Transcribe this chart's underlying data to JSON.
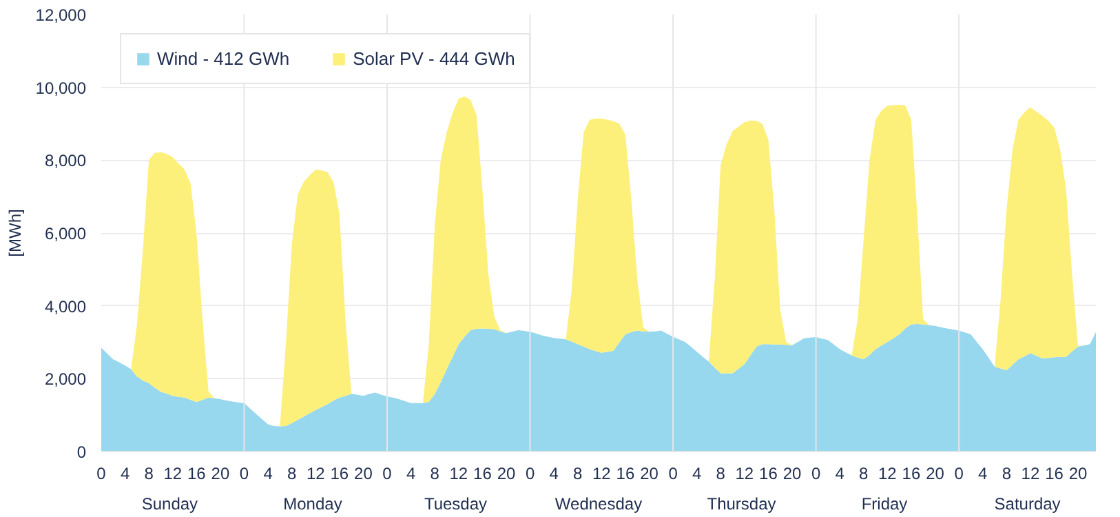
{
  "chart_data": {
    "type": "area",
    "stacked": true,
    "ylabel": "[MWh]",
    "categories": [
      "0",
      null,
      null,
      null,
      "4",
      null,
      null,
      null,
      "8",
      null,
      null,
      null,
      "12",
      null,
      null,
      null,
      "16",
      null,
      null,
      null,
      "20",
      null,
      null,
      null,
      "0",
      null,
      null,
      null,
      "4",
      null,
      null,
      null,
      "8",
      null,
      null,
      null,
      "12",
      null,
      null,
      null,
      "16",
      null,
      null,
      null,
      "20",
      null,
      null,
      null,
      "0",
      null,
      null,
      null,
      "4",
      null,
      null,
      null,
      "8",
      null,
      null,
      null,
      "12",
      null,
      null,
      null,
      "16",
      null,
      null,
      null,
      "20",
      null,
      null,
      null,
      "0",
      null,
      null,
      null,
      "4",
      null,
      null,
      null,
      "8",
      null,
      null,
      null,
      "12",
      null,
      null,
      null,
      "16",
      null,
      null,
      null,
      "20",
      null,
      null,
      null,
      "0",
      null,
      null,
      null,
      "4",
      null,
      null,
      null,
      "8",
      null,
      null,
      null,
      "12",
      null,
      null,
      null,
      "16",
      null,
      null,
      null,
      "20",
      null,
      null,
      null,
      "0",
      null,
      null,
      null,
      "4",
      null,
      null,
      null,
      "8",
      null,
      null,
      null,
      "12",
      null,
      null,
      null,
      "16",
      null,
      null,
      null,
      "20",
      null,
      null,
      null,
      "0",
      null,
      null,
      null,
      "4",
      null,
      null,
      null,
      "8",
      null,
      null,
      null,
      "12",
      null,
      null,
      null,
      "16",
      null,
      null,
      null,
      "20",
      null,
      null,
      null
    ],
    "series": [
      {
        "name": "Wind - 412 GWh",
        "color": "#98d8ee",
        "values": [
          2850,
          2690,
          2530,
          2450,
          2360,
          2260,
          2060,
          1950,
          1880,
          1750,
          1640,
          1590,
          1530,
          1500,
          1480,
          1420,
          1360,
          1420,
          1480,
          1460,
          1440,
          1400,
          1370,
          1350,
          1330,
          1180,
          1030,
          890,
          750,
          700,
          690,
          700,
          780,
          870,
          960,
          1050,
          1140,
          1220,
          1300,
          1400,
          1480,
          1530,
          1580,
          1560,
          1530,
          1580,
          1620,
          1560,
          1510,
          1480,
          1440,
          1380,
          1330,
          1330,
          1330,
          1360,
          1580,
          1900,
          2260,
          2600,
          2950,
          3150,
          3330,
          3370,
          3380,
          3370,
          3360,
          3300,
          3250,
          3290,
          3330,
          3310,
          3290,
          3240,
          3190,
          3150,
          3120,
          3100,
          3080,
          3020,
          2950,
          2880,
          2810,
          2760,
          2710,
          2740,
          2770,
          3000,
          3220,
          3280,
          3320,
          3300,
          3290,
          3300,
          3320,
          3230,
          3150,
          3080,
          3010,
          2880,
          2740,
          2600,
          2470,
          2300,
          2150,
          2150,
          2150,
          2270,
          2400,
          2640,
          2880,
          2950,
          2950,
          2940,
          2940,
          2930,
          2920,
          3010,
          3110,
          3130,
          3140,
          3100,
          3060,
          2940,
          2810,
          2720,
          2640,
          2580,
          2530,
          2650,
          2810,
          2910,
          3010,
          3110,
          3220,
          3380,
          3490,
          3500,
          3490,
          3470,
          3450,
          3410,
          3380,
          3350,
          3320,
          3270,
          3220,
          3010,
          2810,
          2570,
          2330,
          2280,
          2230,
          2380,
          2530,
          2610,
          2700,
          2630,
          2560,
          2570,
          2590,
          2600,
          2600,
          2750,
          2880,
          2910,
          2950,
          3280
        ]
      },
      {
        "name": "Solar PV - 444 GWh",
        "color": "#fdf07a",
        "values": [
          0,
          0,
          0,
          0,
          0,
          0,
          1430,
          3600,
          6130,
          6450,
          6580,
          6580,
          6550,
          6400,
          6260,
          5940,
          4600,
          2210,
          170,
          0,
          0,
          0,
          0,
          0,
          0,
          0,
          0,
          0,
          0,
          0,
          0,
          2250,
          4910,
          6190,
          6440,
          6540,
          6600,
          6500,
          6370,
          6000,
          5030,
          2100,
          0,
          0,
          0,
          0,
          0,
          0,
          0,
          0,
          0,
          0,
          0,
          0,
          0,
          1590,
          4650,
          6110,
          6510,
          6700,
          6740,
          6600,
          6330,
          5880,
          3810,
          1490,
          340,
          30,
          0,
          0,
          0,
          0,
          0,
          0,
          0,
          0,
          0,
          0,
          0,
          1430,
          3970,
          5890,
          6300,
          6380,
          6430,
          6370,
          6300,
          6000,
          5480,
          3640,
          1410,
          100,
          0,
          0,
          0,
          0,
          0,
          0,
          0,
          0,
          0,
          0,
          0,
          2430,
          5730,
          6280,
          6650,
          6650,
          6640,
          6450,
          6200,
          6050,
          5610,
          3700,
          960,
          70,
          0,
          0,
          0,
          0,
          0,
          0,
          0,
          0,
          0,
          0,
          0,
          1050,
          3290,
          5360,
          6300,
          6450,
          6480,
          6400,
          6300,
          6120,
          5620,
          3010,
          140,
          0,
          0,
          0,
          0,
          0,
          0,
          0,
          0,
          0,
          0,
          0,
          0,
          1900,
          4410,
          5910,
          6580,
          6700,
          6750,
          6700,
          6660,
          6510,
          6310,
          5690,
          4590,
          2110,
          20,
          0,
          0,
          0
        ]
      }
    ],
    "annotations": [
      "Sunday",
      "Monday",
      "Tuesday",
      "Wednesday",
      "Thursday",
      "Friday",
      "Saturday"
    ],
    "ylim": [
      0,
      12000
    ],
    "yticks": [
      {
        "value": 0,
        "label": "0"
      },
      {
        "value": 2000,
        "label": "2,000"
      },
      {
        "value": 4000,
        "label": "4,000"
      },
      {
        "value": 6000,
        "label": "6,000"
      },
      {
        "value": 8000,
        "label": "8,000"
      },
      {
        "value": 10000,
        "label": "10,000"
      },
      {
        "value": 12000,
        "label": "12,000"
      }
    ],
    "grid": "y",
    "legend": "top left"
  }
}
